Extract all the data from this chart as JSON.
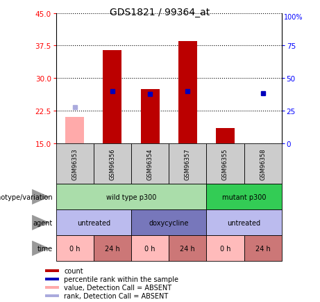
{
  "title": "GDS1821 / 99364_at",
  "samples": [
    "GSM96353",
    "GSM96356",
    "GSM96354",
    "GSM96357",
    "GSM96355",
    "GSM96358"
  ],
  "count_values": [
    null,
    36.5,
    27.5,
    38.5,
    18.5,
    null
  ],
  "rank_values": [
    null,
    27.0,
    26.3,
    27.0,
    null,
    26.5
  ],
  "absent_count_values": [
    21.0,
    null,
    null,
    null,
    null,
    null
  ],
  "absent_rank_values": [
    23.2,
    null,
    null,
    null,
    null,
    null
  ],
  "ylim_left": [
    15,
    45
  ],
  "ylim_right": [
    0,
    100
  ],
  "yticks_left": [
    15,
    22.5,
    30,
    37.5,
    45
  ],
  "yticks_right": [
    0,
    25,
    50,
    75,
    100
  ],
  "bar_color": "#bb0000",
  "rank_color": "#0000bb",
  "absent_bar_color": "#ffaaaa",
  "absent_rank_color": "#aaaadd",
  "sample_bg_color": "#cccccc",
  "wild_color": "#aaddaa",
  "mutant_color": "#33cc55",
  "agent_light_color": "#bbbbee",
  "agent_dark_color": "#7777bb",
  "time_light_color": "#ffbbbb",
  "time_dark_color": "#cc7777",
  "legend_items": [
    {
      "color": "#bb0000",
      "label": "count"
    },
    {
      "color": "#0000bb",
      "label": "percentile rank within the sample"
    },
    {
      "color": "#ffaaaa",
      "label": "value, Detection Call = ABSENT"
    },
    {
      "color": "#aaaadd",
      "label": "rank, Detection Call = ABSENT"
    }
  ],
  "time_labels": [
    "0 h",
    "24 h",
    "0 h",
    "24 h",
    "0 h",
    "24 h"
  ]
}
